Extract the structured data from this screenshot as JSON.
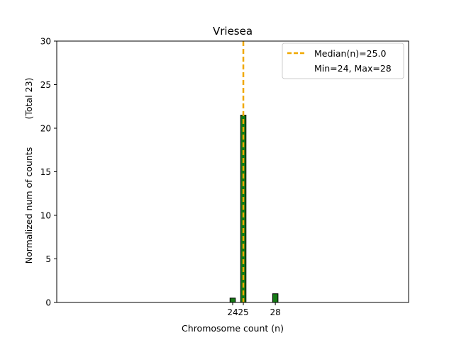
{
  "chart_data": {
    "type": "bar",
    "title": "Vriesea",
    "xlabel": "Chromosome count (n)",
    "ylabel": "Normalized num of counts",
    "ylabel_note": "(Total 23)",
    "xlim": [
      7.5,
      40.5
    ],
    "ylim": [
      0,
      30
    ],
    "yticks": [
      0,
      5,
      10,
      15,
      20,
      25,
      30
    ],
    "xticks": [
      24,
      25,
      28
    ],
    "bar_width": 0.5,
    "bar_color": "#157a15",
    "bar_edge_color": "#000000",
    "bars": [
      {
        "x": 24,
        "value": 0.5
      },
      {
        "x": 25,
        "value": 21.5
      },
      {
        "x": 28,
        "value": 1.0
      }
    ],
    "median": {
      "x": 25,
      "color": "#f0a800",
      "label": "Median(n)=25.0"
    },
    "legend": {
      "placement": "top-right",
      "entries": [
        "Median(n)=25.0",
        "Min=24, Max=28"
      ]
    },
    "grid": false
  }
}
